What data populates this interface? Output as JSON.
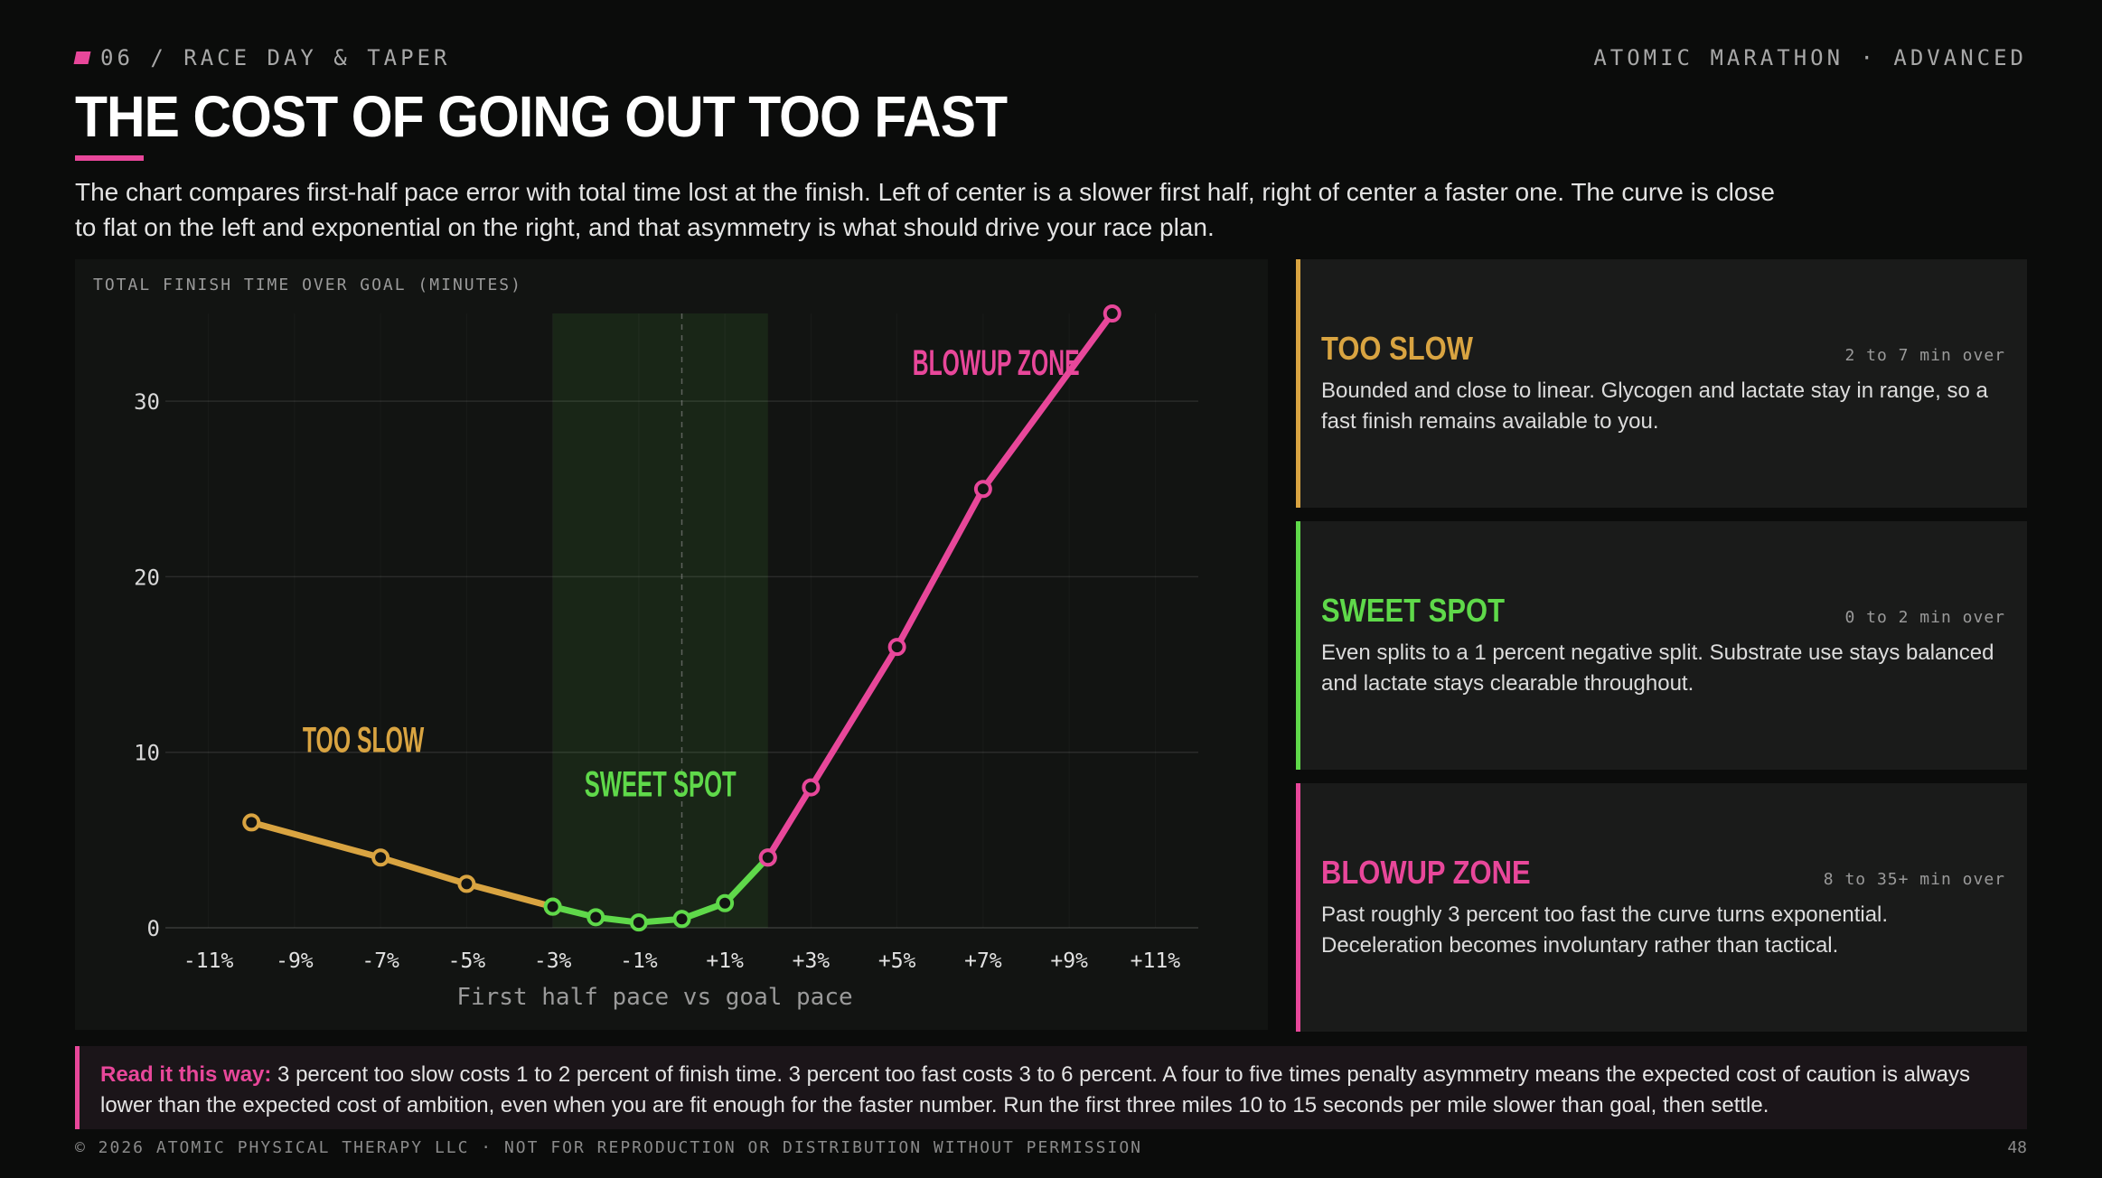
{
  "header": {
    "section": "06 / RACE DAY & TAPER",
    "brand": "ATOMIC MARATHON · ADVANCED",
    "title": "THE COST OF GOING OUT TOO FAST",
    "intro": "The chart compares first-half pace error with total time lost at the finish. Left of center is a slower first half, right of center a faster one. The curve is close to flat on the left and exponential on the right, and that asymmetry is what should drive your race plan."
  },
  "colors": {
    "accent": "#e8479a",
    "too_slow": "#d9a441",
    "sweet_spot": "#5fd94a",
    "blowup": "#e8479a",
    "background": "#0b0c0b"
  },
  "chart_data": {
    "type": "line",
    "ylabel": "TOTAL FINISH TIME OVER GOAL (MINUTES)",
    "xlabel": "First half pace vs goal pace",
    "ylim": [
      0,
      35
    ],
    "yticks": [
      0,
      10,
      20,
      30
    ],
    "x_tick_labels": [
      "-11%",
      "-9%",
      "-7%",
      "-5%",
      "-3%",
      "-1%",
      "+1%",
      "+3%",
      "+5%",
      "+7%",
      "+9%",
      "+11%"
    ],
    "x_tick_values": [
      -11,
      -9,
      -7,
      -5,
      -3,
      -1,
      1,
      3,
      5,
      7,
      9,
      11
    ],
    "xlim": [
      -12,
      12
    ],
    "sweet_spot_band": [
      -3,
      2
    ],
    "reference_line_x": 0,
    "grid": true,
    "series": [
      {
        "name": "TOO SLOW",
        "color": "#d9a441",
        "points": [
          [
            -10,
            6
          ],
          [
            -7,
            4
          ],
          [
            -5,
            2.5
          ],
          [
            -3,
            1.2
          ]
        ]
      },
      {
        "name": "SWEET SPOT",
        "color": "#5fd94a",
        "points": [
          [
            -3,
            1.2
          ],
          [
            -2,
            0.6
          ],
          [
            -1,
            0.3
          ],
          [
            0,
            0.5
          ],
          [
            1,
            1.4
          ],
          [
            2,
            4
          ]
        ]
      },
      {
        "name": "BLOWUP ZONE",
        "color": "#e8479a",
        "points": [
          [
            2,
            4
          ],
          [
            3,
            8
          ],
          [
            5,
            16
          ],
          [
            7,
            25
          ],
          [
            10,
            35
          ]
        ]
      }
    ],
    "annotations": [
      {
        "text": "TOO SLOW",
        "x": -7.4,
        "y": 10,
        "color": "#d9a441"
      },
      {
        "text": "SWEET SPOT",
        "x": -0.5,
        "y": 7.5,
        "color": "#5fd94a"
      },
      {
        "text": "BLOWUP ZONE",
        "x": 7.3,
        "y": 31.5,
        "color": "#e8479a"
      }
    ]
  },
  "cards": [
    {
      "title": "TOO SLOW",
      "range": "2 to 7 min over",
      "color": "#d9a441",
      "body": "Bounded and close to linear. Glycogen and lactate stay in range, so a fast finish remains available to you."
    },
    {
      "title": "SWEET SPOT",
      "range": "0 to 2 min over",
      "color": "#5fd94a",
      "body": "Even splits to a 1 percent negative split. Substrate use stays balanced and lactate stays clearable throughout."
    },
    {
      "title": "BLOWUP ZONE",
      "range": "8 to 35+ min over",
      "color": "#e8479a",
      "body": "Past roughly 3 percent too fast the curve turns exponential. Deceleration becomes involuntary rather than tactical."
    }
  ],
  "note": {
    "lead": "Read it this way:",
    "text": "3 percent too slow costs 1 to 2 percent of finish time. 3 percent too fast costs 3 to 6 percent. A four to five times penalty asymmetry means the expected cost of caution is always lower than the expected cost of ambition, even when you are fit enough for the faster number. Run the first three miles 10 to 15 seconds per mile slower than goal, then settle."
  },
  "footer": {
    "copyright": "© 2026 ATOMIC PHYSICAL THERAPY LLC · NOT FOR REPRODUCTION OR DISTRIBUTION WITHOUT PERMISSION",
    "page": "48"
  }
}
